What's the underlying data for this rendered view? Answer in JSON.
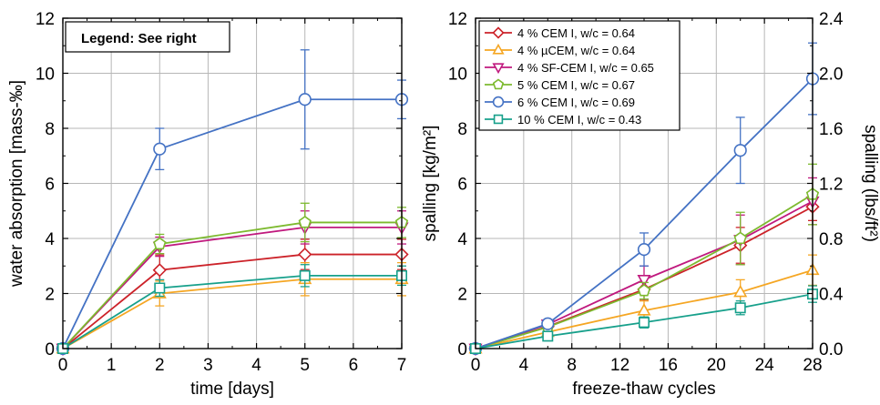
{
  "chart_data": [
    {
      "type": "line",
      "xlabel": "time [days]",
      "ylabel": "water absorption [mass-‰]",
      "xlim": [
        0,
        7
      ],
      "ylim": [
        0,
        12
      ],
      "xticks": [
        "0",
        "1",
        "2",
        "3",
        "4",
        "5",
        "6",
        "7"
      ],
      "yticks": [
        "0",
        "2",
        "4",
        "6",
        "8",
        "10",
        "12"
      ],
      "grid": true,
      "legend_note": "Legend: See right",
      "legend_position": "top-left",
      "x": [
        0,
        2,
        5,
        7
      ],
      "series": [
        {
          "marker": "diamond",
          "color": "#cc2229",
          "values": [
            0,
            2.85,
            3.42,
            3.42
          ],
          "err": [
            0,
            0.55,
            0.55,
            0.55
          ]
        },
        {
          "marker": "triangle-up",
          "color": "#f5a623",
          "values": [
            0,
            2.0,
            2.52,
            2.52
          ],
          "err": [
            0,
            0.45,
            0.6,
            0.6
          ]
        },
        {
          "marker": "triangle-down",
          "color": "#c0197e",
          "values": [
            0,
            3.7,
            4.4,
            4.4
          ],
          "err": [
            0,
            0.35,
            0.6,
            0.6
          ]
        },
        {
          "marker": "pentagon",
          "color": "#7dba2f",
          "values": [
            0,
            3.8,
            4.58,
            4.58
          ],
          "err": [
            0,
            0.35,
            0.7,
            0.55
          ]
        },
        {
          "marker": "circle",
          "color": "#4472c4",
          "values": [
            0,
            7.25,
            9.05,
            9.05
          ],
          "err": [
            0,
            0.75,
            1.8,
            0.7
          ]
        },
        {
          "marker": "square",
          "color": "#17a08b",
          "values": [
            0,
            2.2,
            2.65,
            2.65
          ],
          "err": [
            0,
            0.3,
            0.4,
            0.35
          ]
        }
      ]
    },
    {
      "type": "line",
      "xlabel": "freeze-thaw cycles",
      "ylabel": "spalling [kg/m²]",
      "y2label": "spalling (lbs/ft²)",
      "xlim": [
        0,
        28
      ],
      "ylim": [
        0,
        12
      ],
      "y2lim": [
        0,
        2.4
      ],
      "xticks": [
        "0",
        "4",
        "8",
        "12",
        "16",
        "20",
        "24",
        "28"
      ],
      "yticks": [
        "0",
        "2",
        "4",
        "6",
        "8",
        "10",
        "12"
      ],
      "y2ticks": [
        "0.0",
        "0.4",
        "0.8",
        "1.2",
        "1.6",
        "2.0",
        "2.4"
      ],
      "grid": true,
      "legend_position": "top-left",
      "x": [
        0,
        6,
        14,
        22,
        28
      ],
      "series": [
        {
          "name": "4 % CEM I, w/c = 0.64",
          "marker": "diamond",
          "color": "#cc2229",
          "values": [
            0,
            0.8,
            2.15,
            3.75,
            5.15
          ],
          "err": [
            0,
            0.15,
            0.4,
            0.65,
            0.5
          ]
        },
        {
          "name": "4 % µCEM, w/c = 0.64",
          "marker": "triangle-up",
          "color": "#f5a623",
          "values": [
            0,
            0.6,
            1.38,
            2.05,
            2.85
          ],
          "err": [
            0,
            0.15,
            0.35,
            0.45,
            0.55
          ]
        },
        {
          "name": "4 % SF-CEM I, w/c = 0.65",
          "marker": "triangle-down",
          "color": "#c0197e",
          "values": [
            0,
            0.88,
            2.5,
            3.95,
            5.35
          ],
          "err": [
            0,
            0.15,
            0.5,
            0.9,
            0.85
          ]
        },
        {
          "name": "5 % CEM I, w/c = 0.67",
          "marker": "pentagon",
          "color": "#7dba2f",
          "values": [
            0,
            0.78,
            2.1,
            4.0,
            5.6
          ],
          "err": [
            0,
            0.15,
            0.3,
            0.95,
            1.1
          ]
        },
        {
          "name": "6 % CEM I, w/c = 0.69",
          "marker": "circle",
          "color": "#4472c4",
          "values": [
            0,
            0.9,
            3.6,
            7.2,
            9.8
          ],
          "err": [
            0,
            0.15,
            0.6,
            1.2,
            1.3
          ]
        },
        {
          "name": "10 % CEM I, w/c = 0.43",
          "marker": "square",
          "color": "#17a08b",
          "values": [
            0,
            0.45,
            0.95,
            1.48,
            1.98
          ],
          "err": [
            0,
            0.1,
            0.2,
            0.25,
            0.3
          ]
        }
      ]
    }
  ]
}
